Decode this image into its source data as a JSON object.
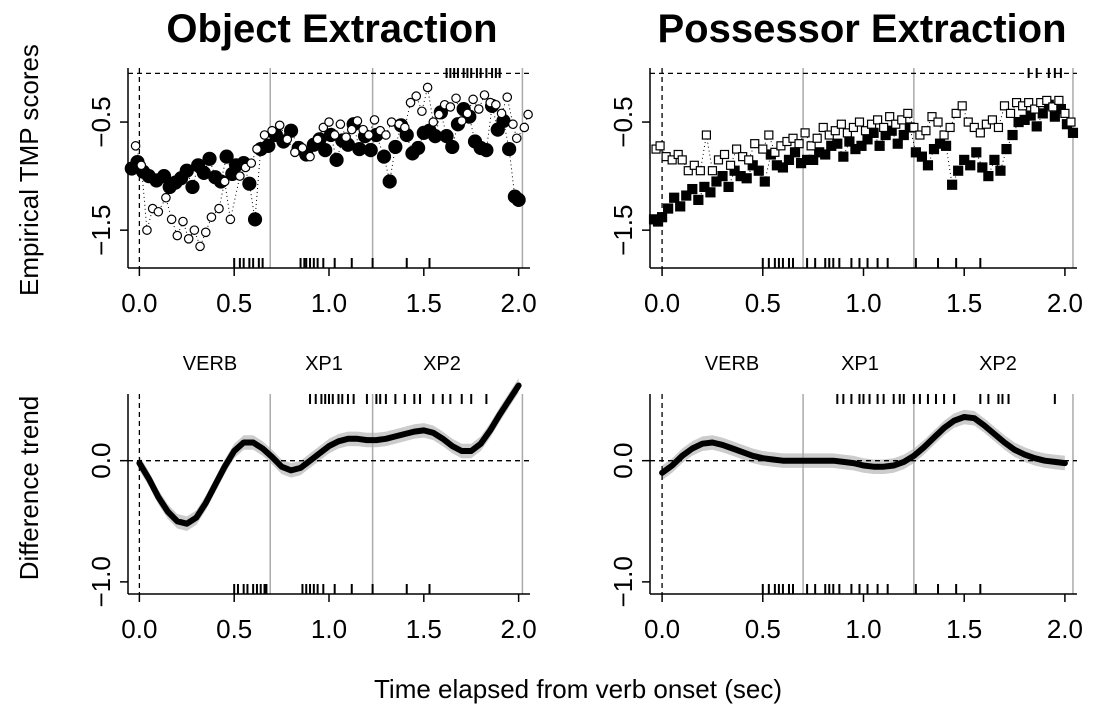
{
  "figure": {
    "x_axis_label": "Time elapsed from verb onset (sec)",
    "region_labels": [
      "VERB",
      "XP1",
      "XP2"
    ],
    "colors": {
      "ribbon": "#cccccc",
      "boundary": "#aaaaaa",
      "ink": "#000000"
    }
  },
  "chart_data": [
    {
      "type": "scatter",
      "panel": "top-left",
      "title": "Object Extraction",
      "ylabel": "Empirical TMP scores",
      "xlim": [
        -0.06,
        2.06
      ],
      "ylim": [
        -1.85,
        0.0
      ],
      "x_ticks": [
        0.0,
        0.5,
        1.0,
        1.5,
        2.0
      ],
      "x_tick_labels": [
        "0.0",
        "0.5",
        "1.0",
        "1.5",
        "2.0"
      ],
      "y_ticks": [
        -1.5,
        -0.5
      ],
      "y_tick_labels": [
        "−1.5",
        "−0.5"
      ],
      "ref_hline": -0.05,
      "ref_vline": 0.0,
      "boundaries": [
        0.69,
        1.23,
        2.02
      ],
      "marker": "circle",
      "series": [
        {
          "filled": true,
          "x": [
            -0.04,
            -0.01,
            0.02,
            0.05,
            0.09,
            0.13,
            0.16,
            0.19,
            0.22,
            0.25,
            0.28,
            0.31,
            0.34,
            0.37,
            0.4,
            0.43,
            0.46,
            0.49,
            0.51,
            0.55,
            0.58,
            0.61,
            0.64,
            0.68,
            0.72,
            0.76,
            0.8,
            0.84,
            0.88,
            0.92,
            0.95,
            0.98,
            1.01,
            1.04,
            1.07,
            1.1,
            1.13,
            1.16,
            1.19,
            1.22,
            1.25,
            1.29,
            1.32,
            1.35,
            1.38,
            1.41,
            1.44,
            1.47,
            1.5,
            1.53,
            1.56,
            1.59,
            1.62,
            1.65,
            1.68,
            1.71,
            1.74,
            1.77,
            1.8,
            1.83,
            1.86,
            1.89,
            1.92,
            1.95,
            1.98,
            2.0
          ],
          "y": [
            -0.93,
            -0.87,
            -0.96,
            -1.0,
            -1.04,
            -1.0,
            -1.1,
            -1.06,
            -1.02,
            -0.95,
            -1.1,
            -0.9,
            -0.97,
            -0.84,
            -1.01,
            -1.05,
            -0.82,
            -0.98,
            -0.9,
            -0.88,
            -1.07,
            -1.4,
            -0.75,
            -0.72,
            -0.62,
            -0.68,
            -0.58,
            -0.74,
            -0.8,
            -0.71,
            -0.66,
            -0.76,
            -0.62,
            -0.85,
            -0.67,
            -0.71,
            -0.52,
            -0.75,
            -0.63,
            -0.76,
            -0.62,
            -0.82,
            -1.05,
            -0.73,
            -0.53,
            -0.62,
            -0.79,
            -0.74,
            -0.6,
            -0.58,
            -0.63,
            -0.41,
            -0.63,
            -0.73,
            -0.52,
            -0.38,
            -0.45,
            -0.68,
            -0.74,
            -0.76,
            -0.35,
            -0.57,
            -0.49,
            -0.75,
            -1.19,
            -1.22
          ]
        },
        {
          "filled": false,
          "x": [
            -0.02,
            0.01,
            0.04,
            0.07,
            0.1,
            0.14,
            0.17,
            0.2,
            0.23,
            0.26,
            0.29,
            0.32,
            0.35,
            0.38,
            0.42,
            0.45,
            0.48,
            0.53,
            0.56,
            0.59,
            0.62,
            0.66,
            0.7,
            0.74,
            0.78,
            0.82,
            0.86,
            0.9,
            0.94,
            0.97,
            1.0,
            1.03,
            1.06,
            1.09,
            1.12,
            1.15,
            1.18,
            1.21,
            1.24,
            1.27,
            1.3,
            1.33,
            1.37,
            1.4,
            1.43,
            1.46,
            1.49,
            1.52,
            1.55,
            1.58,
            1.61,
            1.64,
            1.67,
            1.7,
            1.73,
            1.76,
            1.79,
            1.82,
            1.85,
            1.88,
            1.91,
            1.94,
            1.97,
            1.99,
            2.03,
            2.05
          ],
          "y": [
            -0.72,
            -0.9,
            -1.5,
            -1.3,
            -1.33,
            -1.2,
            -1.4,
            -1.55,
            -1.42,
            -1.58,
            -1.5,
            -1.65,
            -1.52,
            -1.38,
            -1.3,
            -1.05,
            -1.4,
            -1.0,
            -0.92,
            -0.88,
            -0.75,
            -0.62,
            -0.58,
            -0.53,
            -0.66,
            -0.78,
            -0.74,
            -0.82,
            -0.66,
            -0.55,
            -0.5,
            -0.62,
            -0.52,
            -0.64,
            -0.57,
            -0.49,
            -0.57,
            -0.62,
            -0.48,
            -0.58,
            -0.62,
            -0.5,
            -0.52,
            -0.55,
            -0.32,
            -0.26,
            -0.4,
            -0.18,
            -0.5,
            -0.43,
            -0.34,
            -0.36,
            -0.28,
            -0.49,
            -0.42,
            -0.29,
            -0.38,
            -0.25,
            -0.32,
            -0.34,
            -0.42,
            -0.27,
            -0.52,
            -0.65,
            -0.55,
            -0.43
          ]
        }
      ],
      "rug_top": [
        1.62,
        1.64,
        1.66,
        1.68,
        1.71,
        1.73,
        1.75,
        1.78,
        1.8,
        1.83,
        1.86,
        1.88,
        1.9
      ],
      "rug_bottom": [
        0.5,
        0.53,
        0.55,
        0.58,
        0.6,
        0.63,
        0.65,
        0.85,
        0.87,
        0.88,
        0.9,
        0.92,
        0.94,
        0.97,
        1.03,
        1.12,
        1.23,
        1.41,
        1.53
      ]
    },
    {
      "type": "scatter",
      "panel": "top-right",
      "title": "Possessor Extraction",
      "ylabel": "",
      "xlim": [
        -0.06,
        2.06
      ],
      "ylim": [
        -1.85,
        0.0
      ],
      "x_ticks": [
        0.0,
        0.5,
        1.0,
        1.5,
        2.0
      ],
      "x_tick_labels": [
        "0.0",
        "0.5",
        "1.0",
        "1.5",
        "2.0"
      ],
      "y_ticks": [
        -1.5,
        -0.5
      ],
      "y_tick_labels": [
        "−1.5",
        "−0.5"
      ],
      "ref_hline": -0.05,
      "ref_vline": 0.0,
      "boundaries": [
        0.7,
        1.25,
        2.04
      ],
      "marker": "square",
      "series": [
        {
          "filled": true,
          "x": [
            -0.04,
            -0.02,
            0.0,
            0.03,
            0.06,
            0.09,
            0.12,
            0.15,
            0.18,
            0.21,
            0.24,
            0.27,
            0.3,
            0.33,
            0.36,
            0.39,
            0.42,
            0.45,
            0.48,
            0.51,
            0.54,
            0.57,
            0.6,
            0.63,
            0.66,
            0.69,
            0.72,
            0.75,
            0.78,
            0.81,
            0.84,
            0.87,
            0.9,
            0.93,
            0.96,
            0.99,
            1.02,
            1.05,
            1.08,
            1.11,
            1.14,
            1.17,
            1.2,
            1.23,
            1.26,
            1.29,
            1.32,
            1.35,
            1.38,
            1.41,
            1.44,
            1.47,
            1.5,
            1.53,
            1.56,
            1.59,
            1.62,
            1.65,
            1.68,
            1.71,
            1.74,
            1.77,
            1.8,
            1.83,
            1.86,
            1.89,
            1.92,
            1.95,
            1.98,
            2.01,
            2.04
          ],
          "y": [
            -1.4,
            -1.42,
            -1.38,
            -1.3,
            -1.2,
            -1.28,
            -1.18,
            -1.12,
            -1.22,
            -1.1,
            -1.15,
            -1.05,
            -1.0,
            -1.1,
            -0.95,
            -1.0,
            -1.02,
            -0.9,
            -0.95,
            -1.05,
            -0.8,
            -0.9,
            -0.92,
            -0.85,
            -0.78,
            -0.88,
            -0.85,
            -0.85,
            -0.78,
            -0.8,
            -0.72,
            -0.7,
            -0.82,
            -0.68,
            -0.75,
            -0.72,
            -0.66,
            -0.6,
            -0.72,
            -0.62,
            -0.58,
            -0.7,
            -0.62,
            -0.55,
            -0.78,
            -0.82,
            -0.9,
            -0.75,
            -0.7,
            -0.72,
            -1.08,
            -0.95,
            -0.85,
            -0.9,
            -0.78,
            -0.92,
            -1.0,
            -0.85,
            -0.95,
            -0.75,
            -0.62,
            -0.5,
            -0.48,
            -0.44,
            -0.54,
            -0.42,
            -0.34,
            -0.45,
            -0.38,
            -0.52,
            -0.6
          ]
        },
        {
          "filled": false,
          "x": [
            -0.03,
            -0.01,
            0.02,
            0.05,
            0.08,
            0.1,
            0.13,
            0.16,
            0.19,
            0.22,
            0.25,
            0.28,
            0.31,
            0.34,
            0.37,
            0.4,
            0.43,
            0.46,
            0.5,
            0.53,
            0.56,
            0.59,
            0.62,
            0.65,
            0.68,
            0.71,
            0.74,
            0.77,
            0.8,
            0.83,
            0.86,
            0.89,
            0.92,
            0.95,
            0.98,
            1.01,
            1.04,
            1.07,
            1.1,
            1.13,
            1.16,
            1.19,
            1.22,
            1.25,
            1.28,
            1.31,
            1.34,
            1.37,
            1.4,
            1.43,
            1.46,
            1.49,
            1.52,
            1.55,
            1.58,
            1.61,
            1.64,
            1.67,
            1.7,
            1.73,
            1.76,
            1.79,
            1.82,
            1.85,
            1.88,
            1.91,
            1.94,
            1.97,
            2.0,
            2.03
          ],
          "y": [
            -0.75,
            -0.72,
            -0.82,
            -0.85,
            -0.8,
            -0.85,
            -0.95,
            -0.9,
            -0.95,
            -0.62,
            -0.95,
            -0.85,
            -0.8,
            -0.9,
            -0.75,
            -0.82,
            -0.85,
            -0.7,
            -0.75,
            -0.62,
            -0.78,
            -0.72,
            -0.68,
            -0.65,
            -0.7,
            -0.6,
            -0.72,
            -0.65,
            -0.55,
            -0.62,
            -0.58,
            -0.52,
            -0.6,
            -0.55,
            -0.5,
            -0.58,
            -0.52,
            -0.48,
            -0.55,
            -0.45,
            -0.52,
            -0.48,
            -0.42,
            -0.55,
            -0.62,
            -0.58,
            -0.45,
            -0.5,
            -0.62,
            -0.55,
            -0.42,
            -0.35,
            -0.5,
            -0.55,
            -0.6,
            -0.52,
            -0.48,
            -0.55,
            -0.35,
            -0.42,
            -0.32,
            -0.35,
            -0.32,
            -0.38,
            -0.32,
            -0.3,
            -0.36,
            -0.3,
            -0.42,
            -0.5
          ]
        }
      ],
      "rug_top": [
        1.82,
        1.86,
        1.92,
        1.95,
        1.98
      ],
      "rug_bottom": [
        0.5,
        0.53,
        0.56,
        0.58,
        0.6,
        0.63,
        0.65,
        0.72,
        0.76,
        0.81,
        0.83,
        0.85,
        0.88,
        0.94,
        0.98,
        1.02,
        1.07,
        1.12,
        1.26,
        1.37,
        1.46,
        1.58
      ]
    },
    {
      "type": "line",
      "panel": "bottom-left",
      "title": "",
      "ylabel": "Difference trend",
      "xlim": [
        -0.06,
        2.06
      ],
      "ylim": [
        -1.1,
        0.55
      ],
      "x_ticks": [
        0.0,
        0.5,
        1.0,
        1.5,
        2.0
      ],
      "x_tick_labels": [
        "0.0",
        "0.5",
        "1.0",
        "1.5",
        "2.0"
      ],
      "y_ticks": [
        -1.0,
        0.0
      ],
      "y_tick_labels": [
        "−1.0",
        "0.0"
      ],
      "ref_hline": 0.0,
      "ref_vline": 0.0,
      "boundaries": [
        0.69,
        1.23,
        2.02
      ],
      "series": [
        {
          "x": [
            0.0,
            0.05,
            0.1,
            0.15,
            0.2,
            0.25,
            0.3,
            0.35,
            0.4,
            0.45,
            0.5,
            0.55,
            0.6,
            0.65,
            0.7,
            0.75,
            0.8,
            0.85,
            0.9,
            0.95,
            1.0,
            1.05,
            1.1,
            1.15,
            1.2,
            1.25,
            1.3,
            1.35,
            1.4,
            1.45,
            1.5,
            1.55,
            1.6,
            1.65,
            1.7,
            1.75,
            1.8,
            1.85,
            1.9,
            1.95,
            2.0
          ],
          "y": [
            -0.02,
            -0.15,
            -0.3,
            -0.42,
            -0.5,
            -0.52,
            -0.47,
            -0.35,
            -0.2,
            -0.05,
            0.08,
            0.15,
            0.15,
            0.1,
            0.03,
            -0.05,
            -0.08,
            -0.06,
            0.0,
            0.06,
            0.12,
            0.16,
            0.18,
            0.18,
            0.17,
            0.17,
            0.18,
            0.2,
            0.22,
            0.24,
            0.25,
            0.23,
            0.18,
            0.12,
            0.08,
            0.08,
            0.14,
            0.25,
            0.38,
            0.5,
            0.62
          ],
          "band": 0.06
        }
      ],
      "rug_top": [
        0.9,
        0.93,
        0.96,
        0.98,
        1.0,
        1.02,
        1.05,
        1.07,
        1.1,
        1.13,
        1.2,
        1.25,
        1.27,
        1.3,
        1.35,
        1.4,
        1.45,
        1.48,
        1.55,
        1.6,
        1.64,
        1.7,
        1.75,
        1.83
      ],
      "rug_bottom": [
        0.5,
        0.52,
        0.55,
        0.57,
        0.6,
        0.62,
        0.64,
        0.66,
        0.67,
        0.86,
        0.88,
        0.9,
        0.92,
        0.94,
        0.97,
        1.03,
        1.12,
        1.23,
        1.41,
        1.53
      ]
    },
    {
      "type": "line",
      "panel": "bottom-right",
      "title": "",
      "ylabel": "",
      "xlim": [
        -0.06,
        2.06
      ],
      "ylim": [
        -1.1,
        0.55
      ],
      "x_ticks": [
        0.0,
        0.5,
        1.0,
        1.5,
        2.0
      ],
      "x_tick_labels": [
        "0.0",
        "0.5",
        "1.0",
        "1.5",
        "2.0"
      ],
      "y_ticks": [
        -1.0,
        0.0
      ],
      "y_tick_labels": [
        "−1.0",
        "0.0"
      ],
      "ref_hline": 0.0,
      "ref_vline": 0.0,
      "boundaries": [
        0.7,
        1.25,
        2.04
      ],
      "series": [
        {
          "x": [
            0.0,
            0.05,
            0.1,
            0.15,
            0.2,
            0.25,
            0.3,
            0.35,
            0.4,
            0.45,
            0.5,
            0.55,
            0.6,
            0.65,
            0.7,
            0.75,
            0.8,
            0.85,
            0.9,
            0.95,
            1.0,
            1.05,
            1.1,
            1.15,
            1.2,
            1.25,
            1.3,
            1.35,
            1.4,
            1.45,
            1.5,
            1.55,
            1.6,
            1.65,
            1.7,
            1.75,
            1.8,
            1.85,
            1.9,
            1.95,
            2.0
          ],
          "y": [
            -0.1,
            -0.04,
            0.04,
            0.1,
            0.14,
            0.15,
            0.13,
            0.1,
            0.07,
            0.04,
            0.02,
            0.01,
            0.0,
            0.0,
            0.0,
            0.0,
            0.0,
            0.0,
            -0.01,
            -0.02,
            -0.04,
            -0.05,
            -0.05,
            -0.04,
            -0.01,
            0.04,
            0.11,
            0.19,
            0.27,
            0.33,
            0.36,
            0.35,
            0.29,
            0.22,
            0.15,
            0.09,
            0.05,
            0.02,
            0.0,
            -0.01,
            -0.02
          ],
          "band": 0.06
        }
      ],
      "rug_top": [
        0.87,
        0.9,
        0.94,
        0.98,
        1.0,
        1.03,
        1.07,
        1.1,
        1.15,
        1.18,
        1.2,
        1.25,
        1.28,
        1.32,
        1.36,
        1.4,
        1.45,
        1.58,
        1.62,
        1.67,
        1.69,
        1.72,
        1.95
      ],
      "rug_bottom": [
        0.5,
        0.53,
        0.56,
        0.58,
        0.6,
        0.63,
        0.65,
        0.72,
        0.76,
        0.81,
        0.83,
        0.85,
        0.88,
        0.94,
        0.98,
        1.02,
        1.07,
        1.12,
        1.26,
        1.37,
        1.46,
        1.58
      ]
    }
  ]
}
